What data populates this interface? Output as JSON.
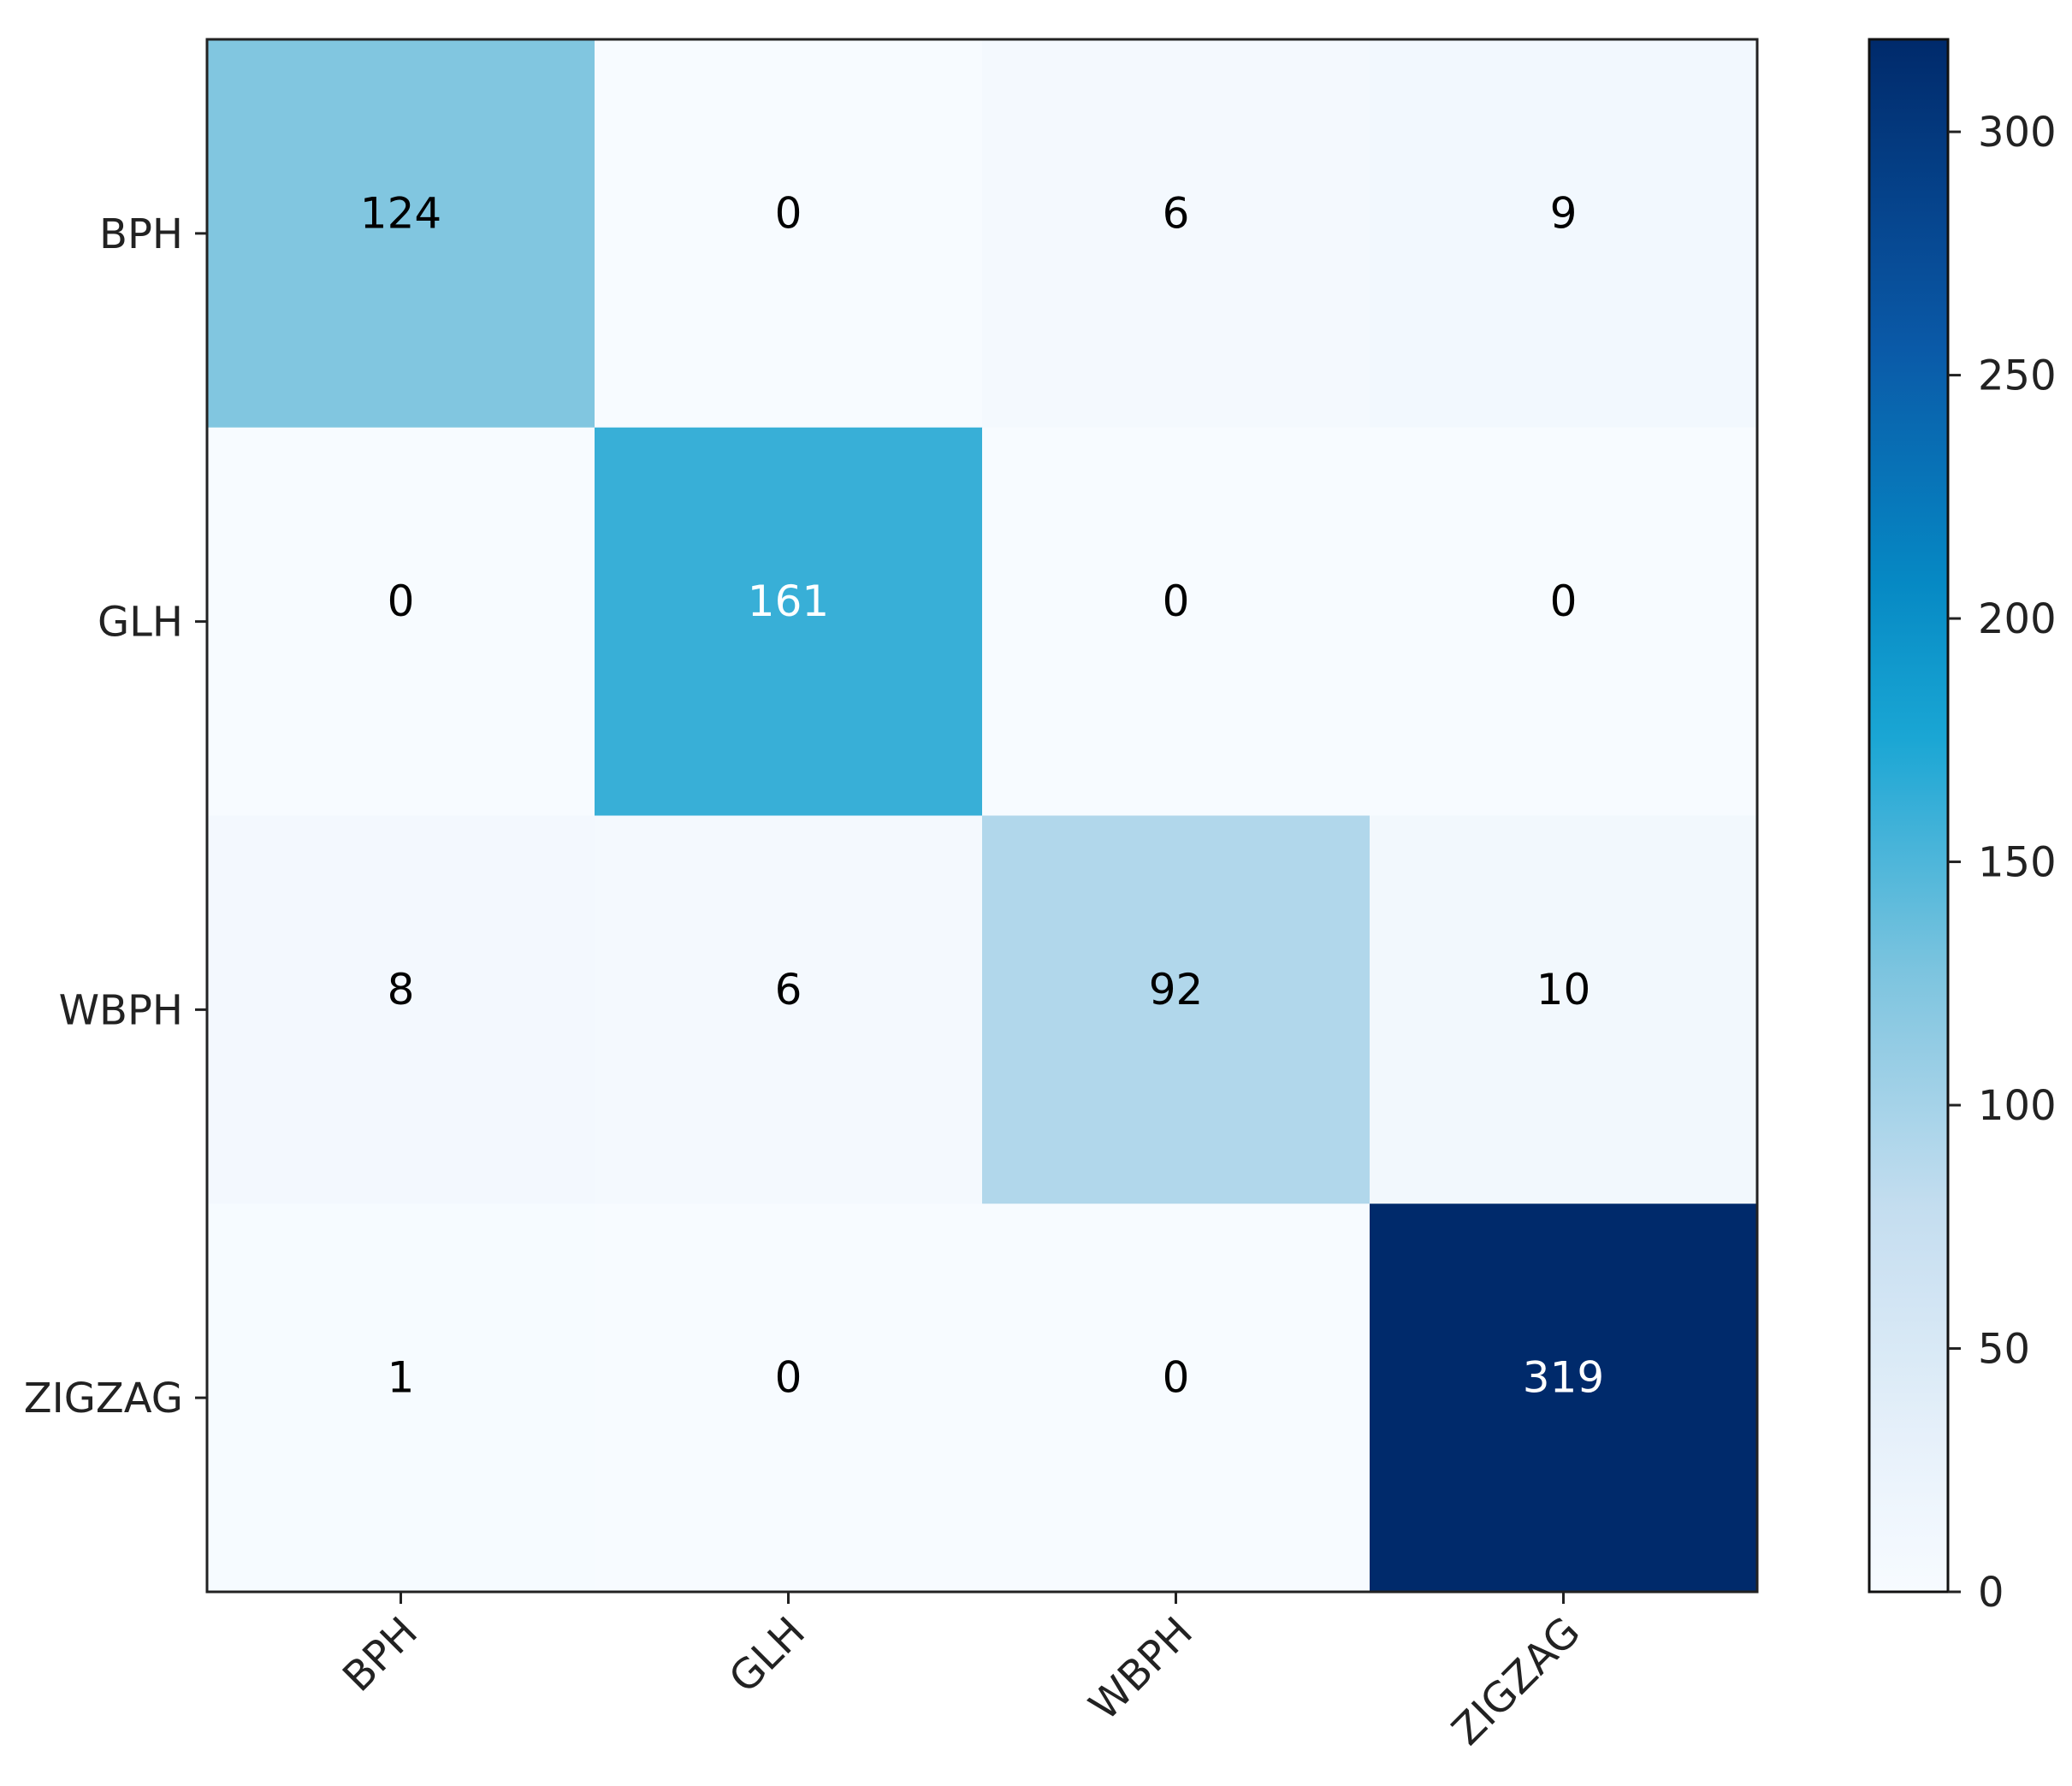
{
  "chart_data": {
    "type": "heatmap",
    "title": "",
    "xlabel": "",
    "ylabel": "",
    "row_labels": [
      "BPH",
      "GLH",
      "WBPH",
      "ZIGZAG"
    ],
    "col_labels": [
      "BPH",
      "GLH",
      "WBPH",
      "ZIGZAG"
    ],
    "values": [
      [
        124,
        0,
        6,
        9
      ],
      [
        0,
        161,
        0,
        0
      ],
      [
        8,
        6,
        92,
        10
      ],
      [
        1,
        0,
        0,
        319
      ]
    ],
    "colormap": "Blues",
    "colorbar": {
      "range": [
        0,
        319
      ],
      "ticks": [
        0,
        50,
        100,
        150,
        200,
        250,
        300
      ],
      "tick_labels": [
        "0",
        "50",
        "100",
        "150",
        "200",
        "250",
        "300"
      ]
    },
    "text_color_dark": "#000000",
    "text_color_light": "#ffffff",
    "grid": false,
    "legend": "colorbar-right"
  }
}
